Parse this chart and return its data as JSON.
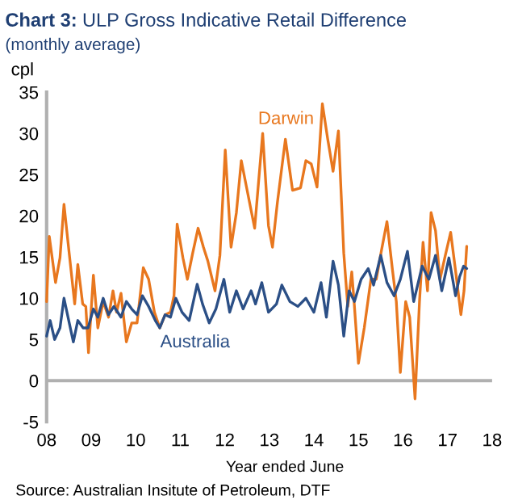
{
  "chart_data": {
    "type": "line",
    "title": "Chart 3: ULP Gross Indicative Retail Difference",
    "subtitle": "(monthly average)",
    "ylabel": "cpl",
    "xlabel": "Year ended June",
    "annotations": [
      "Source: Australian Insitute of Petroleum, DTF"
    ],
    "xlim": [
      8,
      18
    ],
    "xticks": [
      {
        "value": 8,
        "label": "08"
      },
      {
        "value": 9,
        "label": "09"
      },
      {
        "value": 10,
        "label": "10"
      },
      {
        "value": 11,
        "label": "11"
      },
      {
        "value": 12,
        "label": "12"
      },
      {
        "value": 13,
        "label": "13"
      },
      {
        "value": 14,
        "label": "14"
      },
      {
        "value": 15,
        "label": "15"
      },
      {
        "value": 16,
        "label": "16"
      },
      {
        "value": 17,
        "label": "17"
      },
      {
        "value": 18,
        "label": "18"
      }
    ],
    "ylim": [
      -5,
      35
    ],
    "yticks": [
      -5,
      0,
      5,
      10,
      15,
      20,
      25,
      30,
      35
    ],
    "grid": false,
    "legend": false,
    "ref_lines": [
      {
        "axis": "y",
        "value": 0,
        "color": "#b0b0b0"
      }
    ],
    "series": [
      {
        "name": "Darwin",
        "color": "#e8771e",
        "x": [
          8.0,
          8.06,
          8.2,
          8.3,
          8.39,
          8.48,
          8.63,
          8.7,
          8.81,
          8.88,
          8.94,
          9.05,
          9.15,
          9.27,
          9.39,
          9.49,
          9.57,
          9.67,
          9.79,
          9.91,
          10.03,
          10.17,
          10.29,
          10.42,
          10.54,
          10.66,
          10.78,
          10.86,
          10.93,
          11.06,
          11.16,
          11.28,
          11.4,
          11.52,
          11.62,
          11.78,
          11.89,
          12.01,
          12.14,
          12.26,
          12.37,
          12.49,
          12.67,
          12.85,
          12.98,
          13.07,
          13.18,
          13.36,
          13.52,
          13.7,
          13.82,
          13.94,
          14.07,
          14.19,
          14.31,
          14.43,
          14.55,
          14.67,
          14.76,
          14.85,
          14.91,
          15.0,
          15.13,
          15.28,
          15.4,
          15.52,
          15.64,
          15.76,
          15.85,
          15.94,
          16.06,
          16.15,
          16.27,
          16.37,
          16.45,
          16.55,
          16.63,
          16.73,
          16.83,
          16.95,
          17.07,
          17.19,
          17.3,
          17.37,
          17.43
        ],
        "values": [
          9.6,
          17.5,
          11.9,
          14.9,
          21.4,
          16.8,
          9.3,
          14.1,
          9.3,
          9.0,
          3.4,
          12.8,
          6.4,
          9.6,
          7.7,
          10.9,
          8.3,
          10.6,
          4.7,
          7.0,
          7.0,
          13.7,
          12.3,
          8.3,
          6.4,
          8.0,
          8.3,
          10.3,
          19.0,
          14.9,
          12.3,
          15.5,
          18.5,
          16.2,
          14.5,
          10.9,
          15.2,
          28.0,
          16.2,
          20.4,
          26.7,
          23.4,
          18.5,
          30.0,
          18.8,
          16.2,
          21.6,
          29.3,
          23.1,
          23.4,
          26.7,
          26.3,
          23.5,
          33.6,
          29.3,
          25.4,
          30.3,
          15.5,
          9.0,
          13.2,
          9.0,
          2.1,
          6.4,
          12.3,
          12.3,
          15.9,
          19.3,
          13.6,
          9.6,
          1.0,
          9.6,
          7.7,
          -2.2,
          9.6,
          16.8,
          10.9,
          20.4,
          18.2,
          12.3,
          15.2,
          18.0,
          12.9,
          8.0,
          10.9,
          16.3
        ]
      },
      {
        "name": "Australia",
        "color": "#2b4f86",
        "x": [
          8.0,
          8.08,
          8.18,
          8.3,
          8.39,
          8.48,
          8.6,
          8.7,
          8.82,
          8.93,
          9.05,
          9.15,
          9.27,
          9.39,
          9.51,
          9.67,
          9.79,
          9.91,
          10.03,
          10.15,
          10.29,
          10.44,
          10.54,
          10.66,
          10.78,
          10.9,
          11.04,
          11.2,
          11.38,
          11.5,
          11.65,
          11.8,
          11.98,
          12.11,
          12.26,
          12.41,
          12.59,
          12.69,
          12.83,
          12.98,
          13.16,
          13.28,
          13.46,
          13.64,
          13.82,
          14.0,
          14.16,
          14.28,
          14.43,
          14.55,
          14.67,
          14.79,
          14.91,
          15.06,
          15.22,
          15.34,
          15.5,
          15.64,
          15.8,
          15.94,
          16.1,
          16.24,
          16.43,
          16.58,
          16.73,
          16.87,
          17.03,
          17.18,
          17.27,
          17.36,
          17.43
        ],
        "values": [
          5.4,
          7.3,
          5.0,
          6.4,
          10.0,
          7.7,
          4.7,
          7.3,
          6.4,
          6.4,
          8.7,
          7.7,
          10.0,
          8.0,
          9.0,
          7.7,
          9.6,
          8.7,
          8.0,
          10.3,
          9.0,
          7.3,
          6.4,
          8.0,
          7.7,
          10.0,
          8.3,
          7.3,
          11.7,
          9.3,
          7.0,
          8.7,
          12.3,
          8.3,
          10.9,
          8.7,
          10.9,
          9.3,
          11.9,
          8.3,
          9.3,
          11.6,
          9.6,
          9.0,
          10.0,
          8.3,
          11.9,
          7.7,
          14.5,
          11.6,
          5.4,
          10.9,
          9.6,
          12.3,
          13.6,
          11.6,
          15.2,
          11.9,
          10.3,
          12.3,
          15.7,
          9.6,
          13.9,
          12.3,
          15.2,
          10.9,
          14.9,
          10.3,
          12.6,
          13.9,
          13.6
        ]
      }
    ]
  }
}
